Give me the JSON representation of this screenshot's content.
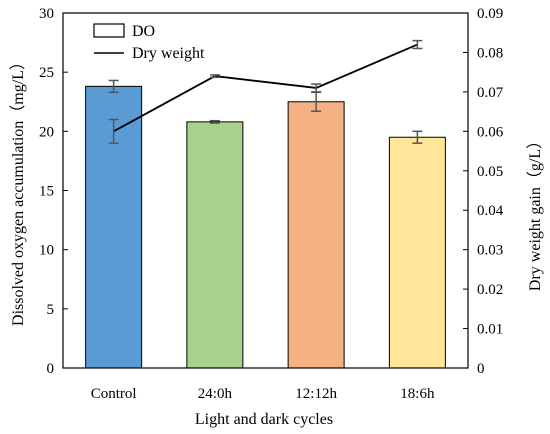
{
  "chart_data": {
    "type": "bar",
    "categories": [
      "Control",
      "24:0h",
      "12:12h",
      "18:6h"
    ],
    "xlabel": "Light and dark cycles",
    "series": [
      {
        "name": "DO",
        "kind": "bar",
        "axis": "left",
        "values": [
          23.8,
          20.8,
          22.5,
          19.5
        ],
        "errors": [
          0.5,
          0.1,
          0.8,
          0.5
        ],
        "colors": [
          "#5b9bd5",
          "#a9d18e",
          "#f4b183",
          "#ffe699"
        ]
      },
      {
        "name": "Dry weight",
        "kind": "line",
        "axis": "right",
        "values": [
          0.06,
          0.074,
          0.071,
          0.082
        ],
        "errors": [
          0.003,
          0.0003,
          0.001,
          0.001
        ],
        "color": "#000000"
      }
    ],
    "y_left": {
      "label": "Dissolved oxygen accumulation（mg/L）",
      "lim": [
        0,
        30
      ],
      "ticks": [
        0,
        5,
        10,
        15,
        20,
        25,
        30
      ],
      "tick_labels": [
        "0",
        "5",
        "10",
        "15",
        "20",
        "25",
        "30"
      ]
    },
    "y_right": {
      "label": "Dry weight gain（g/L）",
      "lim": [
        0,
        0.09
      ],
      "ticks": [
        0,
        0.01,
        0.02,
        0.03,
        0.04,
        0.05,
        0.06,
        0.07,
        0.08,
        0.09
      ],
      "tick_labels": [
        "0",
        "0.01",
        "0.02",
        "0.03",
        "0.04",
        "0.05",
        "0.06",
        "0.07",
        "0.08",
        "0.09"
      ]
    },
    "grid": false,
    "legend": {
      "position": "top-left",
      "entries": [
        {
          "label": "DO",
          "marker": "bar"
        },
        {
          "label": "Dry weight",
          "marker": "line"
        }
      ]
    }
  }
}
